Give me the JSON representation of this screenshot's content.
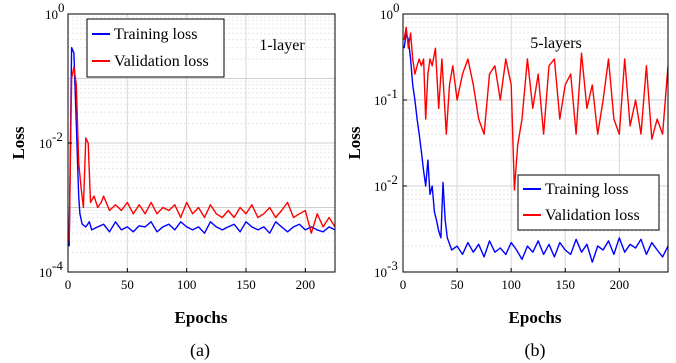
{
  "chart_data": [
    {
      "type": "line",
      "panel_label": "(a)",
      "annotation": "1-layer",
      "xlabel": "Epochs",
      "ylabel": "Loss",
      "yscale": "log",
      "xlim": [
        0,
        225
      ],
      "ylim": [
        0.0001,
        1
      ],
      "xticks": [
        "0",
        "50",
        "100",
        "150",
        "200"
      ],
      "xtick_values": [
        0,
        50,
        100,
        150,
        200
      ],
      "yticks": [
        "10",
        "10",
        "10"
      ],
      "ytick_exps": [
        "-4",
        "-2",
        "0"
      ],
      "ytick_values": [
        0.0001,
        0.01,
        1
      ],
      "grid": true,
      "legend_position": "top-left",
      "series": [
        {
          "name": "Training loss",
          "color": "#0000ff",
          "x": [
            1,
            3,
            5,
            7,
            9,
            10,
            12,
            15,
            18,
            20,
            25,
            30,
            35,
            40,
            45,
            50,
            55,
            60,
            65,
            70,
            75,
            80,
            85,
            90,
            95,
            100,
            105,
            110,
            115,
            120,
            125,
            130,
            135,
            140,
            145,
            150,
            155,
            160,
            165,
            170,
            175,
            180,
            185,
            190,
            195,
            200,
            205,
            210,
            215,
            220,
            225
          ],
          "y": [
            0.00025,
            0.3,
            0.25,
            0.02,
            0.0015,
            0.0008,
            0.00055,
            0.0005,
            0.0006,
            0.00045,
            0.0005,
            0.00055,
            0.00042,
            0.0006,
            0.00045,
            0.0005,
            0.00042,
            0.00052,
            0.0005,
            0.0006,
            0.00042,
            0.0005,
            0.00055,
            0.00045,
            0.0006,
            0.0005,
            0.00045,
            0.0005,
            0.0004,
            0.0006,
            0.0005,
            0.00045,
            0.0005,
            0.00055,
            0.00042,
            0.0006,
            0.0005,
            0.00045,
            0.0005,
            0.0004,
            0.0006,
            0.0005,
            0.00042,
            0.0005,
            0.00055,
            0.00045,
            0.0005,
            0.00045,
            0.00042,
            0.0005,
            0.00045
          ]
        },
        {
          "name": "Validation loss",
          "color": "#ff0000",
          "x": [
            1,
            3,
            5,
            7,
            9,
            11,
            13,
            15,
            17,
            19,
            22,
            25,
            28,
            30,
            35,
            40,
            45,
            50,
            55,
            60,
            65,
            70,
            75,
            80,
            85,
            90,
            95,
            100,
            105,
            110,
            115,
            120,
            125,
            130,
            135,
            140,
            145,
            150,
            155,
            160,
            165,
            170,
            175,
            180,
            185,
            190,
            195,
            200,
            205,
            210,
            215,
            220,
            225
          ],
          "y": [
            0.0003,
            0.1,
            0.15,
            0.08,
            0.005,
            0.002,
            0.001,
            0.012,
            0.01,
            0.0012,
            0.0015,
            0.001,
            0.0012,
            0.0015,
            0.0009,
            0.0011,
            0.0009,
            0.0012,
            0.0008,
            0.0011,
            0.0008,
            0.0012,
            0.0008,
            0.001,
            0.0009,
            0.0011,
            0.0007,
            0.0012,
            0.0008,
            0.001,
            0.0007,
            0.0011,
            0.0008,
            0.0007,
            0.0009,
            0.0007,
            0.001,
            0.0008,
            0.0011,
            0.0007,
            0.0008,
            0.001,
            0.0007,
            0.0009,
            0.0012,
            0.0007,
            0.0008,
            0.0009,
            0.0004,
            0.0008,
            0.0005,
            0.0007,
            0.0005
          ]
        }
      ]
    },
    {
      "type": "line",
      "panel_label": "(b)",
      "annotation": "5-layers",
      "xlabel": "Epochs",
      "ylabel": "Loss",
      "yscale": "log",
      "xlim": [
        0,
        245
      ],
      "ylim": [
        0.001,
        1
      ],
      "xticks": [
        "0",
        "50",
        "100",
        "150",
        "200"
      ],
      "xtick_values": [
        0,
        50,
        100,
        150,
        200
      ],
      "yticks": [
        "10",
        "10",
        "10",
        "10"
      ],
      "ytick_exps": [
        "-3",
        "-2",
        "-1",
        "0"
      ],
      "ytick_values": [
        0.001,
        0.01,
        0.1,
        1
      ],
      "grid": true,
      "legend_position": "bottom-right",
      "series": [
        {
          "name": "Training loss",
          "color": "#0000ff",
          "x": [
            1,
            3,
            5,
            7,
            9,
            11,
            13,
            15,
            17,
            19,
            21,
            23,
            25,
            27,
            29,
            31,
            33,
            35,
            37,
            39,
            41,
            45,
            50,
            55,
            60,
            65,
            70,
            75,
            80,
            85,
            90,
            95,
            100,
            105,
            110,
            115,
            120,
            125,
            130,
            135,
            140,
            145,
            150,
            155,
            160,
            165,
            170,
            175,
            180,
            185,
            190,
            195,
            200,
            205,
            210,
            215,
            220,
            225,
            230,
            235,
            240,
            245
          ],
          "y": [
            0.4,
            0.6,
            0.5,
            0.3,
            0.15,
            0.1,
            0.06,
            0.04,
            0.025,
            0.015,
            0.01,
            0.02,
            0.008,
            0.01,
            0.005,
            0.004,
            0.003,
            0.0025,
            0.011,
            0.004,
            0.0025,
            0.0018,
            0.002,
            0.0016,
            0.0022,
            0.0017,
            0.0021,
            0.0015,
            0.0023,
            0.0017,
            0.0019,
            0.0016,
            0.0022,
            0.0018,
            0.0014,
            0.002,
            0.0017,
            0.0023,
            0.0016,
            0.0021,
            0.0015,
            0.0022,
            0.0018,
            0.0016,
            0.0024,
            0.0017,
            0.0021,
            0.0013,
            0.002,
            0.0018,
            0.0023,
            0.0016,
            0.0025,
            0.0017,
            0.0021,
            0.0019,
            0.0024,
            0.0016,
            0.0022,
            0.0018,
            0.0015,
            0.002
          ]
        },
        {
          "name": "Validation loss",
          "color": "#ff0000",
          "x": [
            1,
            3,
            5,
            7,
            9,
            11,
            13,
            15,
            17,
            19,
            21,
            23,
            25,
            27,
            30,
            33,
            36,
            40,
            43,
            46,
            50,
            55,
            60,
            65,
            70,
            75,
            80,
            85,
            90,
            95,
            100,
            103,
            106,
            110,
            115,
            120,
            125,
            130,
            135,
            140,
            145,
            150,
            155,
            160,
            165,
            170,
            175,
            180,
            185,
            190,
            195,
            200,
            205,
            210,
            215,
            220,
            225,
            230,
            235,
            240,
            245
          ],
          "y": [
            0.5,
            0.7,
            0.4,
            0.6,
            0.3,
            0.2,
            0.25,
            0.3,
            0.25,
            0.3,
            0.06,
            0.2,
            0.3,
            0.25,
            0.4,
            0.08,
            0.3,
            0.04,
            0.15,
            0.25,
            0.1,
            0.2,
            0.3,
            0.15,
            0.06,
            0.04,
            0.2,
            0.25,
            0.1,
            0.3,
            0.15,
            0.009,
            0.03,
            0.06,
            0.3,
            0.08,
            0.2,
            0.04,
            0.25,
            0.3,
            0.06,
            0.15,
            0.2,
            0.04,
            0.35,
            0.08,
            0.15,
            0.04,
            0.1,
            0.3,
            0.06,
            0.04,
            0.3,
            0.05,
            0.1,
            0.04,
            0.25,
            0.035,
            0.06,
            0.04,
            0.25
          ]
        }
      ]
    }
  ]
}
